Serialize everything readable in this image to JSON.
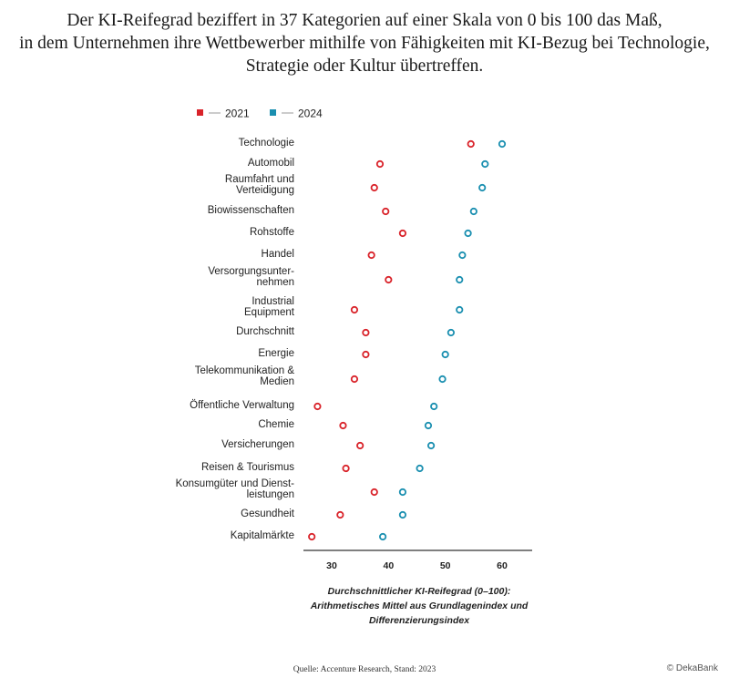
{
  "title_lines": [
    "Der KI-Reifegrad beziffert in 37 Kategorien auf einer Skala von 0 bis 100 das Maß,",
    "in dem Unternehmen ihre Wettbewerber mithilfe von Fähigkeiten mit KI-Bezug bei Technologie,",
    "Strategie oder Kultur übertreffen."
  ],
  "source": "Quelle: Accenture Research, Stand: 2023",
  "copyright": "© DekaBank",
  "colors": {
    "series_2021": "#d9232a",
    "series_2024": "#1a8fb0",
    "axis": "#555555"
  },
  "chart_data": {
    "type": "dumbbell",
    "legend_position": "top-left",
    "grid": false,
    "xlabel_lines": [
      "Durchschnittlicher KI-Reifegrad (0–100):",
      "Arithmetisches Mittel aus Grundlagenindex und",
      "Differenzierungsindex"
    ],
    "xticks": [
      "30",
      "40",
      "50",
      "60"
    ],
    "xlim": [
      26,
      65
    ],
    "series": [
      {
        "name": "2021",
        "values": [
          54.5,
          38.5,
          37.5,
          39.5,
          42.5,
          37,
          40,
          34,
          36,
          36,
          34,
          27.5,
          32,
          35,
          32.5,
          37.5,
          31.5,
          26.5
        ]
      },
      {
        "name": "2024",
        "values": [
          60,
          57,
          56.5,
          55,
          54,
          53,
          52.5,
          52.5,
          51,
          50,
          49.5,
          48,
          47,
          47.5,
          45.5,
          42.5,
          42.5,
          39
        ]
      }
    ],
    "categories": [
      [
        "Technologie"
      ],
      [
        "Automobil"
      ],
      [
        "Raumfahrt und",
        "Verteidigung"
      ],
      [
        "Biowissenschaften"
      ],
      [
        "Rohstoffe"
      ],
      [
        "Handel"
      ],
      [
        "Versorgungsunter-",
        "nehmen"
      ],
      [
        "Industrial",
        "Equipment"
      ],
      [
        "Durchschnitt"
      ],
      [
        "Energie"
      ],
      [
        "Telekommunikation &",
        "Medien"
      ],
      [
        "Öffentliche Verwaltung"
      ],
      [
        "Chemie"
      ],
      [
        "Versicherungen"
      ],
      [
        "Reisen & Tourismus"
      ],
      [
        "Konsumgüter und Dienst-",
        "leistungen"
      ],
      [
        "Gesundheit"
      ],
      [
        "Kapitalmärkte"
      ]
    ]
  }
}
